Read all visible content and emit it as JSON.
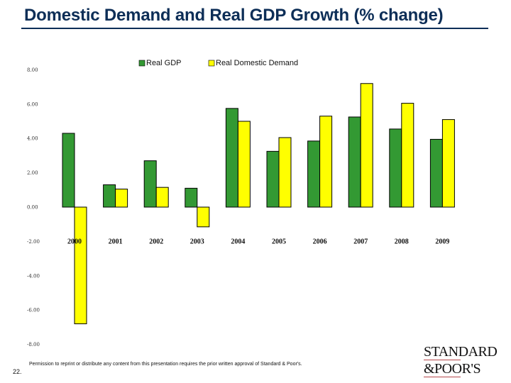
{
  "header": {
    "title": "Domestic Demand and Real GDP Growth (% change)"
  },
  "footer": {
    "page_number": "22.",
    "permission_text": "Permission to reprint or distribute any content from this presentation requires the prior written approval of Standard & Poor's.",
    "logo_line1": "STANDARD",
    "logo_line2": "&POOR'S"
  },
  "chart_data": {
    "type": "bar",
    "title": "Domestic Demand and Real GDP Growth (% change)",
    "xlabel": "",
    "ylabel": "",
    "categories": [
      "2000",
      "2001",
      "2002",
      "2003",
      "2004",
      "2005",
      "2006",
      "2007",
      "2008",
      "2009"
    ],
    "series": [
      {
        "name": "Real GDP",
        "color": "#339933",
        "values": [
          4.3,
          1.3,
          2.7,
          1.1,
          5.75,
          3.25,
          3.85,
          5.25,
          4.55,
          3.95
        ]
      },
      {
        "name": "Real Domestic Demand",
        "color": "#ffff00",
        "values": [
          -6.8,
          1.05,
          1.15,
          -1.15,
          5.0,
          4.05,
          5.3,
          7.2,
          6.05,
          5.1
        ]
      }
    ],
    "ylim": [
      -8,
      8
    ],
    "yticks": [
      "8.00",
      "6.00",
      "4.00",
      "2.00",
      "0.00",
      "-2.00",
      "-4.00",
      "-6.00",
      "-8.00"
    ],
    "ytick_values": [
      8,
      6,
      4,
      2,
      0,
      -2,
      -4,
      -6,
      -8
    ],
    "grid": false,
    "legend": "top-center"
  }
}
